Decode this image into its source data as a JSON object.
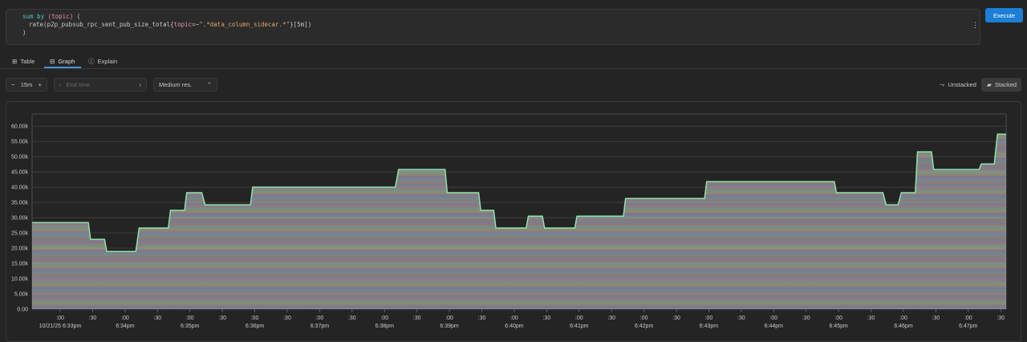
{
  "query": {
    "lines": [
      [
        "sum by ",
        "(topic)",
        " ("
      ],
      [
        "rate(p2p_pubsub_rpc_sent_pub_size_total{",
        "topic",
        "=~",
        "\".*data_column_sidecar.*\"",
        "}[5m])"
      ],
      [
        ")"
      ]
    ]
  },
  "execute": "Execute",
  "tabs": [
    "Table",
    "Graph",
    "Explain"
  ],
  "controls": {
    "range": "15m",
    "end_time": "End time",
    "resolution": "Medium res.",
    "unstacked": "Unstacked",
    "stacked": "Stacked"
  },
  "chart_data": {
    "type": "area",
    "stacked": true,
    "color": "#8fe3ad",
    "grid": true,
    "x": [
      -26,
      26,
      28,
      41,
      43,
      70,
      73,
      100,
      102,
      115,
      117,
      131,
      134,
      176,
      178,
      310,
      313,
      356,
      358,
      387,
      389,
      401,
      403,
      431,
      433,
      446,
      448,
      476,
      478,
      521,
      523,
      596,
      598,
      716,
      718,
      761,
      764,
      775,
      778,
      791,
      793,
      806,
      808,
      850,
      852,
      864,
      867,
      875
    ],
    "values": [
      28400,
      28400,
      22900,
      22900,
      18900,
      18900,
      26600,
      26600,
      32400,
      32400,
      38200,
      38200,
      34200,
      34200,
      40000,
      40000,
      45800,
      45800,
      38200,
      38200,
      32400,
      32400,
      26600,
      26600,
      30500,
      30500,
      26600,
      26600,
      30500,
      30500,
      36300,
      36300,
      41800,
      41800,
      38200,
      38200,
      34200,
      34200,
      38200,
      38200,
      51600,
      51600,
      45800,
      45800,
      47600,
      47600,
      57400,
      57400
    ],
    "xlim": [
      -26,
      875
    ],
    "ylim": [
      0,
      64000
    ],
    "yticks": [
      {
        "value": 0,
        "label": "0.00"
      },
      {
        "value": 5000,
        "label": "5.00k"
      },
      {
        "value": 10000,
        "label": "10.00k"
      },
      {
        "value": 15000,
        "label": "15.00k"
      },
      {
        "value": 20000,
        "label": "20.00k"
      },
      {
        "value": 25000,
        "label": "25.00k"
      },
      {
        "value": 30000,
        "label": "30.00k"
      },
      {
        "value": 35000,
        "label": "35.00k"
      },
      {
        "value": 40000,
        "label": "40.00k"
      },
      {
        "value": 45000,
        "label": "45.00k"
      },
      {
        "value": 50000,
        "label": "50.00k"
      },
      {
        "value": 55000,
        "label": "55.00k"
      },
      {
        "value": 60000,
        "label": "60.00k"
      }
    ],
    "xticks": [
      {
        "value": 0,
        "label": ":00"
      },
      {
        "value": 30,
        "label": ":30"
      },
      {
        "value": 60,
        "label": ":00"
      },
      {
        "value": 90,
        "label": ":30"
      },
      {
        "value": 120,
        "label": ":00"
      },
      {
        "value": 150,
        "label": ":30"
      },
      {
        "value": 180,
        "label": ":00"
      },
      {
        "value": 210,
        "label": ":30"
      },
      {
        "value": 240,
        "label": ":00"
      },
      {
        "value": 270,
        "label": ":30"
      },
      {
        "value": 300,
        "label": ":00"
      },
      {
        "value": 330,
        "label": ":30"
      },
      {
        "value": 360,
        "label": ":00"
      },
      {
        "value": 390,
        "label": ":30"
      },
      {
        "value": 420,
        "label": ":00"
      },
      {
        "value": 450,
        "label": ":30"
      },
      {
        "value": 480,
        "label": ":00"
      },
      {
        "value": 510,
        "label": ":30"
      },
      {
        "value": 540,
        "label": ":00"
      },
      {
        "value": 570,
        "label": ":30"
      },
      {
        "value": 600,
        "label": ":00"
      },
      {
        "value": 630,
        "label": ":30"
      },
      {
        "value": 660,
        "label": ":00"
      },
      {
        "value": 690,
        "label": ":30"
      },
      {
        "value": 720,
        "label": ":00"
      },
      {
        "value": 750,
        "label": ":30"
      },
      {
        "value": 780,
        "label": ":00"
      },
      {
        "value": 810,
        "label": ":30"
      },
      {
        "value": 840,
        "label": ":00"
      },
      {
        "value": 870,
        "label": ":30"
      }
    ],
    "xticks_major": [
      {
        "value": 0,
        "label": "10/21/25 6:33pm"
      },
      {
        "value": 60,
        "label": "6:34pm"
      },
      {
        "value": 120,
        "label": "6:35pm"
      },
      {
        "value": 180,
        "label": "6:36pm"
      },
      {
        "value": 240,
        "label": "6:37pm"
      },
      {
        "value": 300,
        "label": "6:38pm"
      },
      {
        "value": 360,
        "label": "6:39pm"
      },
      {
        "value": 420,
        "label": "6:40pm"
      },
      {
        "value": 480,
        "label": "6:41pm"
      },
      {
        "value": 540,
        "label": "6:42pm"
      },
      {
        "value": 600,
        "label": "6:43pm"
      },
      {
        "value": 660,
        "label": "6:44pm"
      },
      {
        "value": 720,
        "label": "6:45pm"
      },
      {
        "value": 780,
        "label": "6:46pm"
      },
      {
        "value": 840,
        "label": "6:47pm"
      }
    ]
  }
}
